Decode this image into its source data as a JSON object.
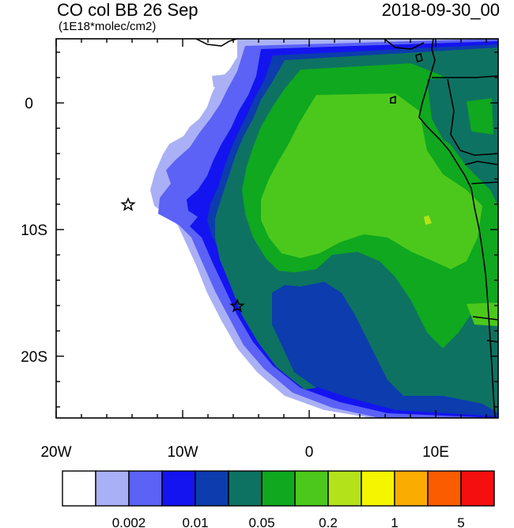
{
  "header": {
    "title": "CO col BB 26 Sep",
    "units": "(1E18*molec/cm2)",
    "datetime": "2018-09-30_00"
  },
  "axes": {
    "x_ticks": [
      "20W",
      "10W",
      "0",
      "10E"
    ],
    "y_ticks": [
      "0",
      "10S",
      "20S"
    ]
  },
  "colorbar": {
    "colors": [
      "#ffffff",
      "#aab0f5",
      "#5b62f5",
      "#1414f0",
      "#0c3cad",
      "#0e7262",
      "#0fa81f",
      "#4cc81c",
      "#b4e21a",
      "#f5f500",
      "#fbac00",
      "#fb5c00",
      "#f50f0f"
    ],
    "labels": [
      "0.002",
      "0.01",
      "0.05",
      "0.2",
      "1",
      "5"
    ]
  },
  "markers": [
    {
      "name": "star-marker-offshore",
      "lon": -14.4,
      "lat": -8.0
    },
    {
      "name": "star-marker-coast",
      "lon": -5.7,
      "lat": -16.0
    }
  ]
}
